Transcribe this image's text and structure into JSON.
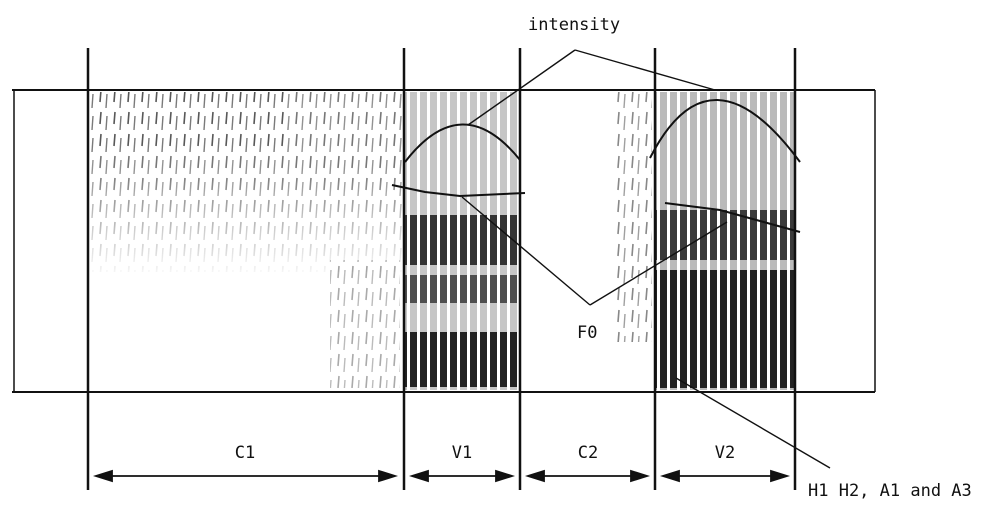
{
  "annotations": {
    "intensity": "intensity",
    "f0": "F0",
    "harmonics": "H1 H2, A1 and A3"
  },
  "segments": [
    {
      "id": "c1",
      "label": "C1"
    },
    {
      "id": "v1",
      "label": "V1"
    },
    {
      "id": "c2",
      "label": "C2"
    },
    {
      "id": "v2",
      "label": "V2"
    }
  ],
  "colors": {
    "ink": "#111111",
    "background": "#ffffff"
  }
}
